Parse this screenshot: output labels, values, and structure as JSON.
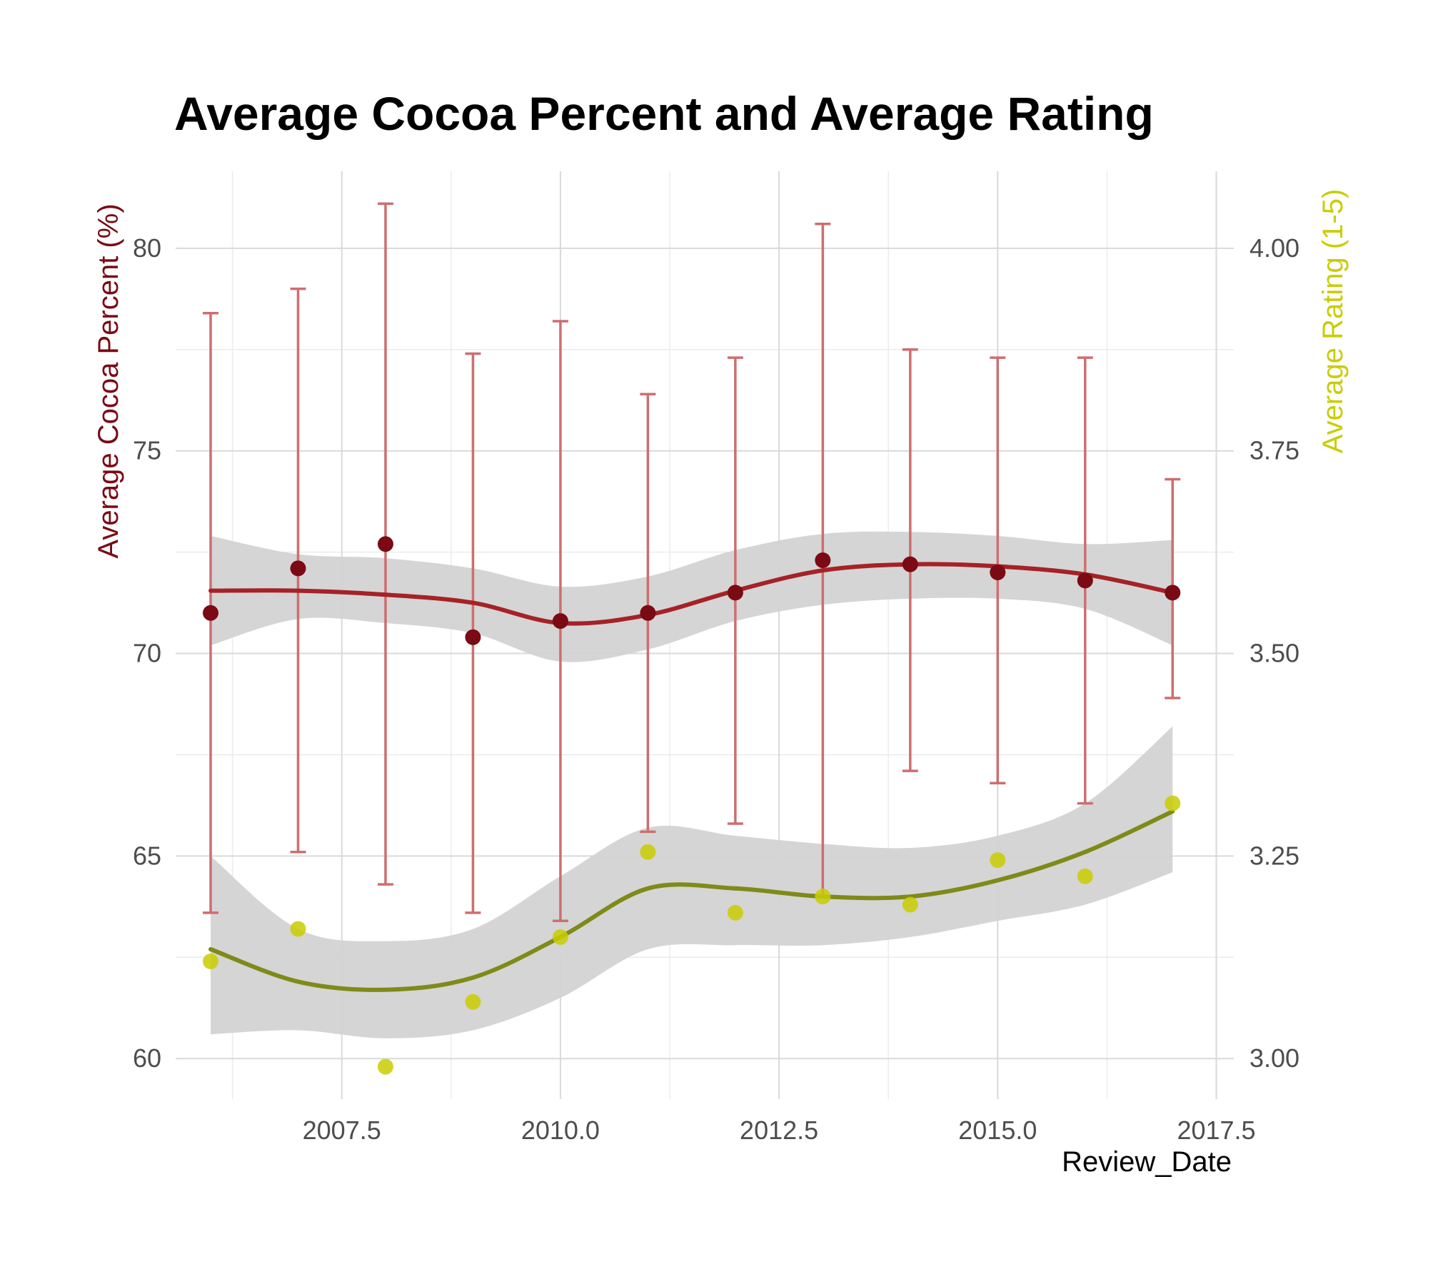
{
  "chart_data": {
    "type": "scatter",
    "title": "Average Cocoa Percent and Average Rating",
    "xlabel": "Review_Date",
    "ylabel": "Average Cocoa Percent (%)",
    "y2label": "Average Rating (1-5)",
    "xlim": [
      2005.6,
      2017.7
    ],
    "ylim": [
      59.0,
      81.9
    ],
    "y2lim": [
      2.95,
      4.095
    ],
    "x_ticks": [
      2007.5,
      2010.0,
      2012.5,
      2015.0,
      2017.5
    ],
    "x_tick_labels": [
      "2007.5",
      "2010.0",
      "2012.5",
      "2015.0",
      "2017.5"
    ],
    "y_ticks": [
      60,
      65,
      70,
      75,
      80
    ],
    "y_tick_labels": [
      "60",
      "65",
      "70",
      "75",
      "80"
    ],
    "y2_ticks": [
      3.0,
      3.25,
      3.5,
      3.75,
      4.0
    ],
    "y2_tick_labels": [
      "3.00",
      "3.25",
      "3.50",
      "3.75",
      "4.00"
    ],
    "grid": true,
    "legend": "none",
    "series": [
      {
        "axis": "left",
        "color": "#7a0a14",
        "x": [
          2006,
          2007,
          2008,
          2009,
          2010,
          2011,
          2012,
          2013,
          2014,
          2015,
          2016,
          2017
        ],
        "values": [
          71.0,
          72.1,
          72.7,
          70.4,
          70.8,
          71.0,
          71.5,
          72.3,
          72.2,
          72.0,
          71.8,
          71.5
        ],
        "error_low": [
          63.6,
          65.1,
          64.3,
          63.6,
          63.4,
          65.6,
          65.8,
          64.0,
          67.1,
          66.8,
          66.3,
          68.9
        ],
        "error_high": [
          78.4,
          79.0,
          81.1,
          77.4,
          78.2,
          76.4,
          77.3,
          80.6,
          77.5,
          77.3,
          77.3,
          74.3
        ],
        "error_color": "#cd6e70",
        "trend": {
          "color": "#a52226",
          "x": [
            2006,
            2007,
            2008,
            2009,
            2010,
            2011,
            2012,
            2013,
            2014,
            2015,
            2016,
            2017
          ],
          "values": [
            71.55,
            71.55,
            71.45,
            71.25,
            70.75,
            70.95,
            71.55,
            72.05,
            72.2,
            72.15,
            71.95,
            71.5
          ],
          "band_low": [
            70.2,
            70.85,
            70.75,
            70.5,
            69.8,
            70.1,
            70.8,
            71.2,
            71.35,
            71.35,
            71.1,
            70.2
          ],
          "band_high": [
            72.9,
            72.45,
            72.35,
            72.1,
            71.65,
            71.9,
            72.55,
            72.95,
            73.0,
            72.9,
            72.7,
            72.8
          ],
          "band_color": "#d3d3d3"
        }
      },
      {
        "axis": "right",
        "color": "#c9cd00",
        "x": [
          2006,
          2007,
          2008,
          2009,
          2010,
          2011,
          2012,
          2013,
          2014,
          2015,
          2016,
          2017
        ],
        "values": [
          3.12,
          3.16,
          2.99,
          3.07,
          3.15,
          3.255,
          3.18,
          3.2,
          3.19,
          3.245,
          3.225,
          3.315
        ],
        "trend": {
          "color": "#7f8a18",
          "x": [
            2006,
            2007,
            2008,
            2009,
            2010,
            2011,
            2012,
            2013,
            2014,
            2015,
            2016,
            2017
          ],
          "values": [
            3.135,
            3.095,
            3.085,
            3.1,
            3.15,
            3.21,
            3.21,
            3.2,
            3.2,
            3.22,
            3.255,
            3.305
          ],
          "band_low": [
            3.03,
            3.035,
            3.025,
            3.035,
            3.075,
            3.135,
            3.14,
            3.14,
            3.15,
            3.17,
            3.19,
            3.23
          ],
          "band_high": [
            3.25,
            3.16,
            3.145,
            3.16,
            3.225,
            3.285,
            3.275,
            3.265,
            3.26,
            3.275,
            3.315,
            3.41
          ],
          "band_color": "#d3d3d3"
        }
      }
    ]
  }
}
